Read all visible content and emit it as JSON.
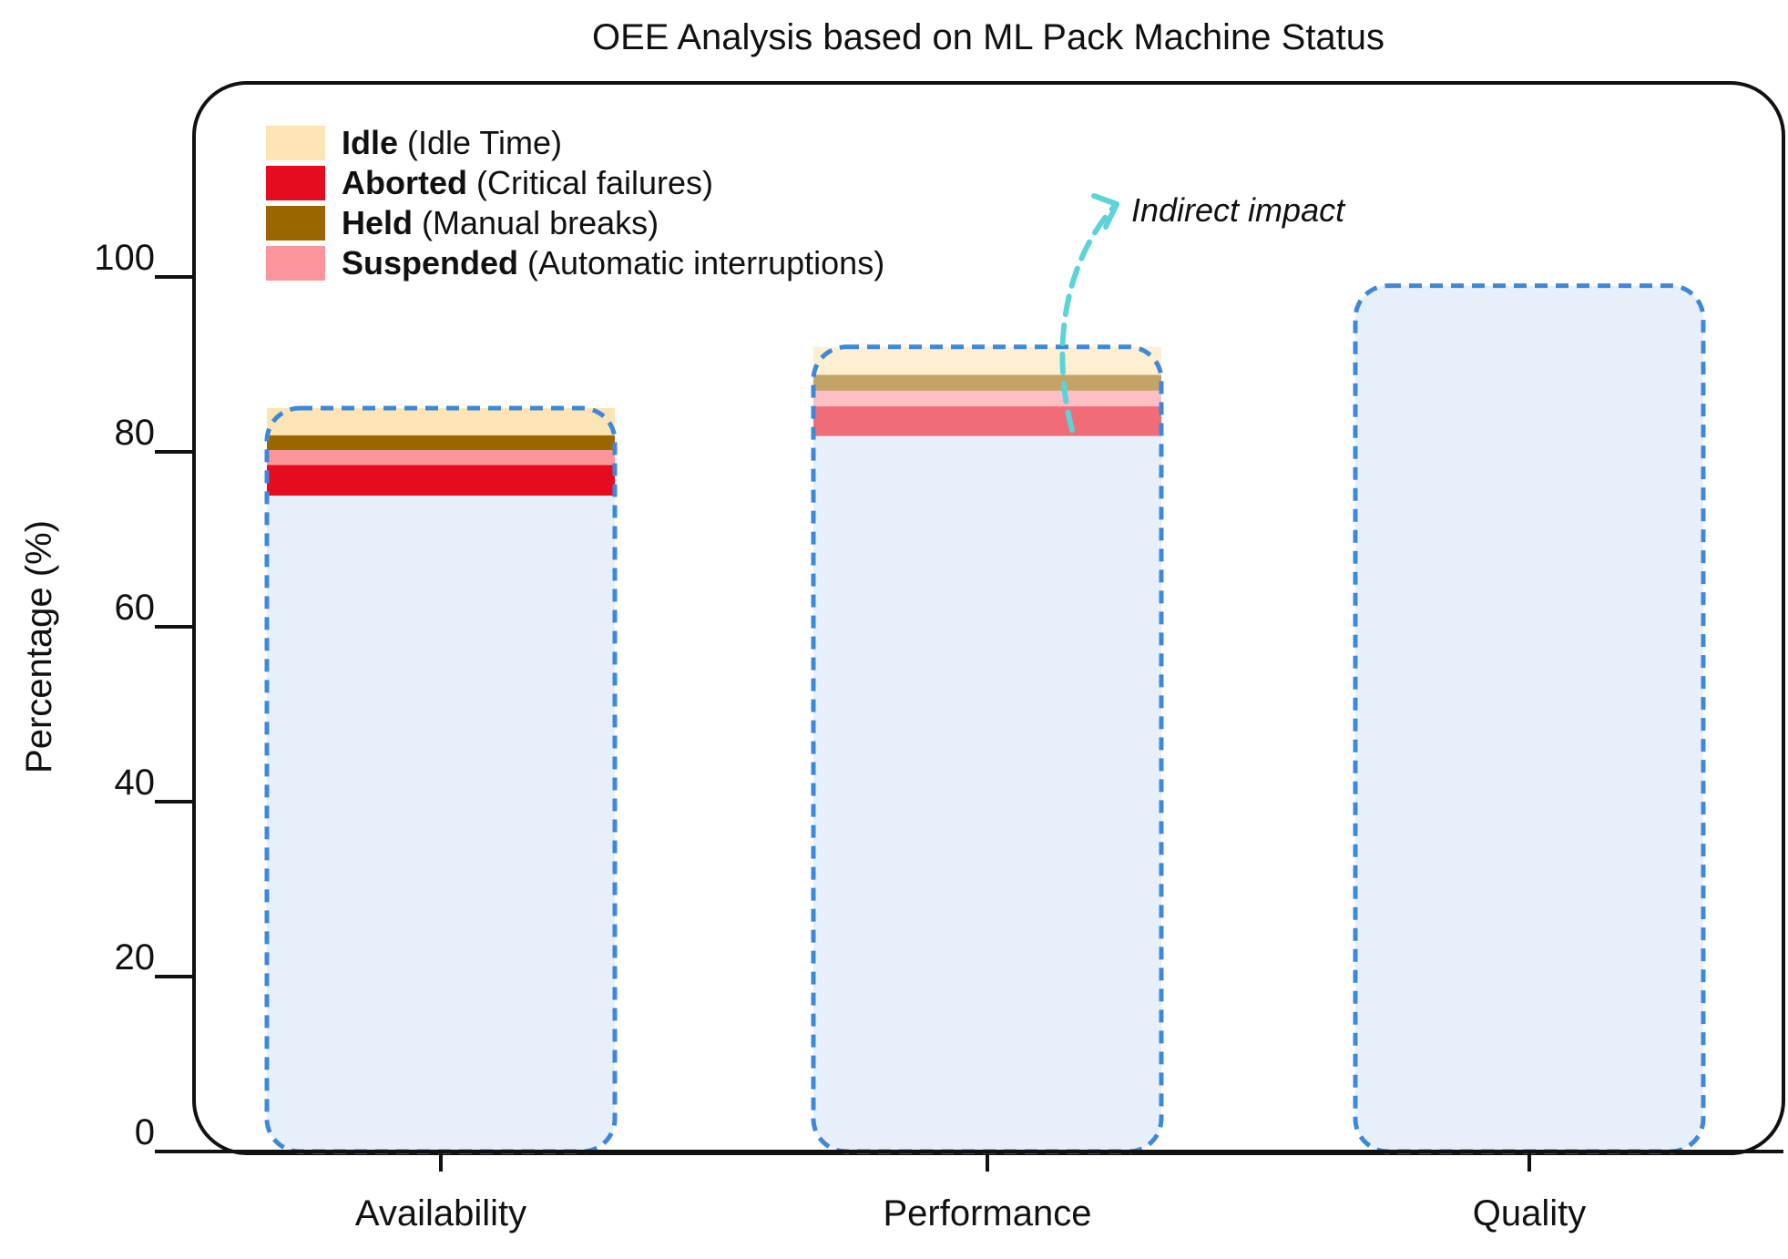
{
  "chart_data": {
    "type": "bar",
    "title": "OEE Analysis based on ML Pack Machine Status",
    "xlabel": "",
    "ylabel": "Percentage (%)",
    "ylim": [
      0,
      100
    ],
    "yticks": [
      "0",
      "20",
      "40",
      "60",
      "80",
      "100"
    ],
    "categories": [
      "Availability",
      "Performance",
      "Quality"
    ],
    "values": [
      85,
      92,
      99
    ],
    "legend": {
      "placement": "top-left",
      "items": [
        {
          "bold": "Idle",
          "desc": "(Idle Time)",
          "color": "#FDE4B4"
        },
        {
          "bold": "Aborted",
          "desc": "(Critical failures)",
          "color": "#E60B1E"
        },
        {
          "bold": "Held",
          "desc": "(Manual breaks)",
          "color": "#9B6600"
        },
        {
          "bold": "Suspended",
          "desc": "(Automatic interruptions)",
          "color": "#FB959B"
        }
      ]
    },
    "stacks": [
      {
        "category": "Availability",
        "segments": [
          {
            "state": "Aborted",
            "from": 75,
            "to": 78.5,
            "color": "#E60B1E",
            "opacity": 1.0
          },
          {
            "state": "Suspended",
            "from": 78.5,
            "to": 80.2,
            "color": "#FB959B",
            "opacity": 1.0
          },
          {
            "state": "Held",
            "from": 80.2,
            "to": 81.9,
            "color": "#9B6600",
            "opacity": 1.0
          },
          {
            "state": "Idle",
            "from": 81.9,
            "to": 85,
            "color": "#FDE4B4",
            "opacity": 1.0
          }
        ]
      },
      {
        "category": "Performance",
        "segments": [
          {
            "state": "Aborted",
            "from": 81.8,
            "to": 85.2,
            "color": "#E60B1E",
            "opacity": 0.6
          },
          {
            "state": "Suspended",
            "from": 85.2,
            "to": 87,
            "color": "#FB959B",
            "opacity": 0.6
          },
          {
            "state": "Held",
            "from": 87,
            "to": 88.8,
            "color": "#9B6600",
            "opacity": 0.6
          },
          {
            "state": "Idle",
            "from": 88.8,
            "to": 92,
            "color": "#FDE4B4",
            "opacity": 0.6
          }
        ]
      }
    ],
    "annotation": {
      "text": "Indirect impact",
      "target": "Performance",
      "color": "#5BD3D9"
    },
    "colors": {
      "bar_fill": "#E7EFFA",
      "bar_stroke": "#3D88D9",
      "frame": "#111111"
    }
  }
}
